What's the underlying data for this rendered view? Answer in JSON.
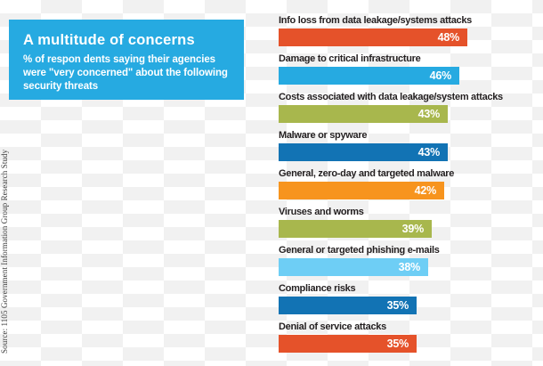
{
  "header": {
    "title": "A multitude of concerns",
    "subtitle": "% of respon dents saying their agencies were \"very concerned\" about the following security threats",
    "panel_color": "#26aae1",
    "text_color": "#ffffff"
  },
  "source_note": "Source: 1105 Government Information Group Research Study",
  "colors": {
    "orange_red": "#e5522a",
    "cyan": "#26aae1",
    "olive_green": "#a8b74d",
    "dark_blue": "#1273b4",
    "orange": "#f7941e",
    "light_blue": "#6ecef5",
    "label_text": "#231f20",
    "value_text": "#ffffff"
  },
  "chart_data": {
    "type": "bar",
    "orientation": "horizontal",
    "title": "A multitude of concerns",
    "subtitle": "% of respon dents saying their agencies were \"very concerned\" about the following security threats",
    "categories": [
      "Info loss from data leakage/systems attacks",
      "Damage to critical infrastructure",
      "Costs associated with data leakage/system attacks",
      "Malware or spyware",
      "General, zero-day and targeted malware",
      "Viruses and worms",
      "General or targeted phishing e-mails",
      "Compliance risks",
      "Denial of service attacks"
    ],
    "values": [
      48,
      46,
      43,
      43,
      42,
      39,
      38,
      35,
      35
    ],
    "value_labels": [
      "48%",
      "46%",
      "43%",
      "43%",
      "42%",
      "39%",
      "38%",
      "35%",
      "35%"
    ],
    "unit": "%",
    "bar_colors": [
      "#e5522a",
      "#26aae1",
      "#a8b74d",
      "#1273b4",
      "#f7941e",
      "#a8b74d",
      "#6ecef5",
      "#1273b4",
      "#e5522a"
    ],
    "value_label_position": "inside-right",
    "grid": false,
    "legend": "none",
    "xlim": [
      0,
      67
    ],
    "source": "Source: 1105 Government Information Group Research Study"
  }
}
